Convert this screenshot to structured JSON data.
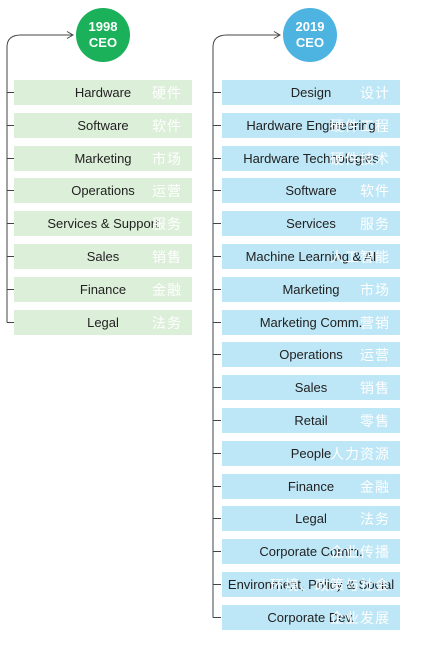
{
  "colors": {
    "left_circle": "#1bb05a",
    "right_circle": "#4db3e0",
    "left_box": "#dcefd9",
    "right_box": "#bde6f6",
    "connector": "#444444"
  },
  "left": {
    "year": "1998",
    "role": "CEO",
    "items": [
      {
        "en": "Hardware",
        "zh": "硬件"
      },
      {
        "en": "Software",
        "zh": "软件"
      },
      {
        "en": "Marketing",
        "zh": "市场"
      },
      {
        "en": "Operations",
        "zh": "运营"
      },
      {
        "en": "Services & Support",
        "zh": "服务"
      },
      {
        "en": "Sales",
        "zh": "销售"
      },
      {
        "en": "Finance",
        "zh": "金融"
      },
      {
        "en": "Legal",
        "zh": "法务"
      }
    ]
  },
  "right": {
    "year": "2019",
    "role": "CEO",
    "items": [
      {
        "en": "Design",
        "zh": "设计"
      },
      {
        "en": "Hardware Engineering",
        "zh": "硬件工程"
      },
      {
        "en": "Hardware Technologies",
        "zh": "硬件技术"
      },
      {
        "en": "Software",
        "zh": "软件"
      },
      {
        "en": "Services",
        "zh": "服务"
      },
      {
        "en": "Machine Learning & AI",
        "zh": "人工智能"
      },
      {
        "en": "Marketing",
        "zh": "市场"
      },
      {
        "en": "Marketing Comm.",
        "zh": "营销"
      },
      {
        "en": "Operations",
        "zh": "运营"
      },
      {
        "en": "Sales",
        "zh": "销售"
      },
      {
        "en": "Retail",
        "zh": "零售"
      },
      {
        "en": "People",
        "zh": "人力资源"
      },
      {
        "en": "Finance",
        "zh": "金融"
      },
      {
        "en": "Legal",
        "zh": "法务"
      },
      {
        "en": "Corporate Comm.",
        "zh": "企业传播"
      },
      {
        "en": "Environment, Policy & Social",
        "zh": "环境、政策与社会"
      },
      {
        "en": "Corporate Dev.",
        "zh": "企业发展"
      }
    ]
  }
}
